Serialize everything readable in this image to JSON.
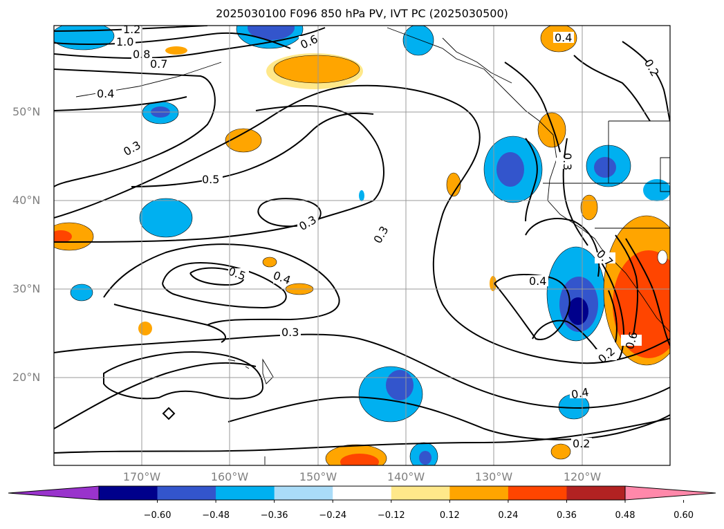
{
  "title": "2025030100 F096 850 hPa PV, IVT PC (2025030500)",
  "lat_labels": [
    "50°N",
    "40°N",
    "30°N",
    "20°N"
  ],
  "lon_labels": [
    "170°W",
    "160°W",
    "150°W",
    "140°W",
    "130°W",
    "120°W"
  ],
  "colorbar": {
    "ticks": [
      "−0.60",
      "−0.48",
      "−0.36",
      "−0.24",
      "−0.12",
      "0.12",
      "0.24",
      "0.36",
      "0.48",
      "0.60"
    ],
    "colors": [
      "#9933cc",
      "#00008b",
      "#3355cc",
      "#00b0f0",
      "#aadcf8",
      "#ffffff",
      "#ffe88a",
      "#ffa500",
      "#ff4500",
      "#b22222",
      "#ff88aa"
    ]
  },
  "contour_labels": [
    "1.2",
    "1.0",
    "0.8",
    "0.7",
    "0.4",
    "0.3",
    "0.5",
    "0.3",
    "0.3",
    "0.5",
    "0.4",
    "0.3",
    "0.6",
    "0.4",
    "0.2",
    "0.3",
    "0.4",
    "0.4",
    "0.2",
    "0.6",
    "0.7",
    "0.2"
  ]
}
